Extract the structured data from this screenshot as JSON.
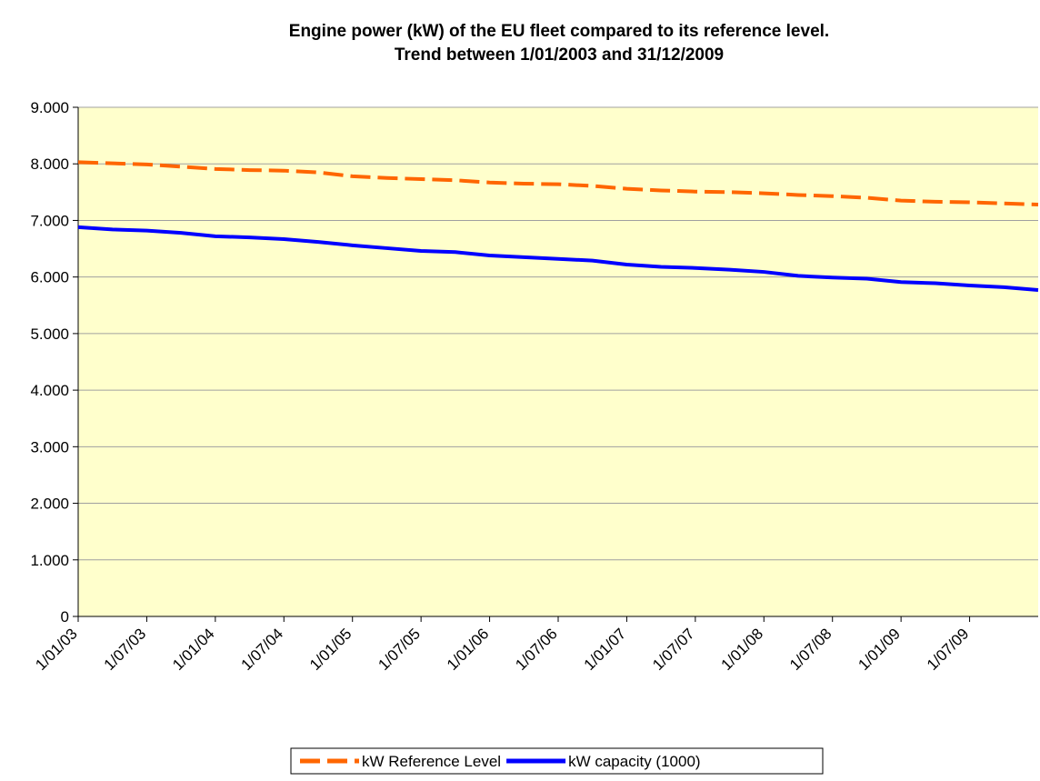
{
  "chart_data": {
    "type": "line",
    "title": [
      "Engine power (kW) of the EU fleet compared to its reference level.",
      "Trend between 1/01/2003 and 31/12/2009"
    ],
    "categories": [
      "1/01/03",
      null,
      "1/07/03",
      null,
      "1/01/04",
      null,
      "1/07/04",
      null,
      "1/01/05",
      null,
      "1/07/05",
      null,
      "1/01/06",
      null,
      "1/07/06",
      null,
      "1/01/07",
      null,
      "1/07/07",
      null,
      "1/01/08",
      null,
      "1/07/08",
      null,
      "1/01/09",
      null,
      "1/07/09",
      null,
      null
    ],
    "series": [
      {
        "name": "kW Reference Level",
        "color": "#ff6600",
        "dashed": true,
        "values": [
          8030,
          8010,
          7990,
          7950,
          7910,
          7890,
          7880,
          7850,
          7780,
          7750,
          7730,
          7710,
          7670,
          7650,
          7640,
          7610,
          7560,
          7530,
          7510,
          7500,
          7480,
          7450,
          7430,
          7400,
          7350,
          7330,
          7320,
          7300,
          7280
        ]
      },
      {
        "name": "kW capacity (1000)",
        "color": "#0000ff",
        "dashed": false,
        "values": [
          6880,
          6840,
          6820,
          6780,
          6720,
          6700,
          6670,
          6620,
          6560,
          6510,
          6460,
          6440,
          6380,
          6350,
          6320,
          6290,
          6220,
          6180,
          6160,
          6130,
          6090,
          6020,
          5990,
          5970,
          5910,
          5890,
          5850,
          5820,
          5770
        ]
      }
    ],
    "ylim": [
      0,
      9000
    ],
    "yticks": [
      0,
      {
        "value": 1000,
        "label": "1.000"
      },
      {
        "value": 2000,
        "label": "2.000"
      },
      {
        "value": 3000,
        "label": "3.000"
      },
      {
        "value": 4000,
        "label": "4.000"
      },
      {
        "value": 5000,
        "label": "5.000"
      },
      {
        "value": 6000,
        "label": "6.000"
      },
      {
        "value": 7000,
        "label": "7.000"
      },
      {
        "value": 8000,
        "label": "8.000"
      },
      {
        "value": 9000,
        "label": "9.000"
      }
    ],
    "grid": true,
    "background": "#ffffcc",
    "legend": "bottom"
  }
}
